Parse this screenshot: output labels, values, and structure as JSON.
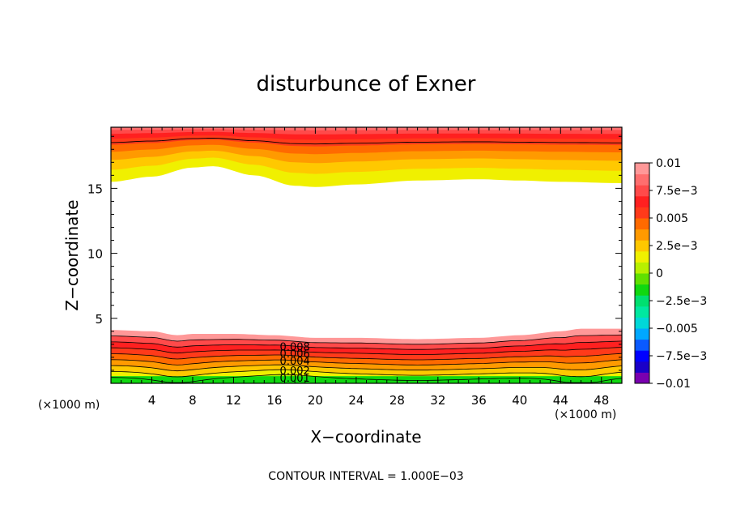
{
  "chart_data": {
    "type": "heatmap",
    "title": "disturbunce of Exner",
    "xlabel": "X−coordinate",
    "ylabel": "Z−coordinate",
    "x_unit": "(×1000 m)",
    "x_unit_right": "(×1000 m)",
    "footer": "CONTOUR INTERVAL = 1.000E−03",
    "xlim": [
      0,
      50
    ],
    "ylim": [
      0,
      19.7
    ],
    "x_ticks": [
      4,
      8,
      12,
      16,
      20,
      24,
      28,
      32,
      36,
      40,
      44,
      48
    ],
    "x_tick_labels": [
      "4",
      "8",
      "12",
      "16",
      "20",
      "24",
      "28",
      "32",
      "36",
      "40",
      "44",
      "48"
    ],
    "y_ticks": [
      5,
      10,
      15
    ],
    "y_tick_labels": [
      "5",
      "10",
      "15"
    ],
    "contour_interval": 0.001,
    "colorbar": {
      "range": [
        -0.01,
        0.01
      ],
      "labels": [
        "0.01",
        "7.5e−3",
        "0.005",
        "2.5e−3",
        "0",
        "−2.5e−3",
        "−0.005",
        "−7.5e−3",
        "−0.01"
      ],
      "label_values": [
        0.01,
        0.0075,
        0.005,
        0.0025,
        0,
        -0.0025,
        -0.005,
        -0.0075,
        -0.01
      ],
      "colors": [
        "#7a00b0",
        "#1a00c8",
        "#0000ff",
        "#0a5aff",
        "#00a8ff",
        "#00d8d8",
        "#00e8a0",
        "#00e070",
        "#10d810",
        "#60e000",
        "#b8f000",
        "#f0f000",
        "#ffc800",
        "#ff9a00",
        "#ff6a00",
        "#ff3a1a",
        "#ff2020",
        "#ff4a4a",
        "#ff6e6e",
        "#ff9898"
      ]
    },
    "contour_labels": [
      {
        "text": "0.008",
        "x": 18.0,
        "y": 2.85
      },
      {
        "text": "0.006",
        "x": 18.0,
        "y": 2.3
      },
      {
        "text": "0.004",
        "x": 18.0,
        "y": 1.75
      },
      {
        "text": "0.002",
        "x": 18.0,
        "y": 1.0
      },
      {
        "text": "0.001",
        "x": 18.0,
        "y": 0.45
      }
    ],
    "upper_region": {
      "description_of_field": "positive disturbance near model top",
      "boundary_x": [
        0,
        4,
        8,
        10,
        14,
        18,
        20,
        24,
        30,
        36,
        40,
        44,
        50
      ],
      "boundary_z_outer": [
        15.5,
        15.9,
        16.6,
        16.7,
        16.0,
        15.2,
        15.1,
        15.3,
        15.6,
        15.7,
        15.6,
        15.5,
        15.4
      ],
      "level_values": [
        0.001,
        0.002,
        0.003,
        0.004,
        0.005,
        0.006,
        0.007,
        0.008
      ]
    },
    "lower_region": {
      "level_values": [
        0.001,
        0.002,
        0.003,
        0.004,
        0.005,
        0.006,
        0.007,
        0.008,
        0.009
      ]
    }
  }
}
